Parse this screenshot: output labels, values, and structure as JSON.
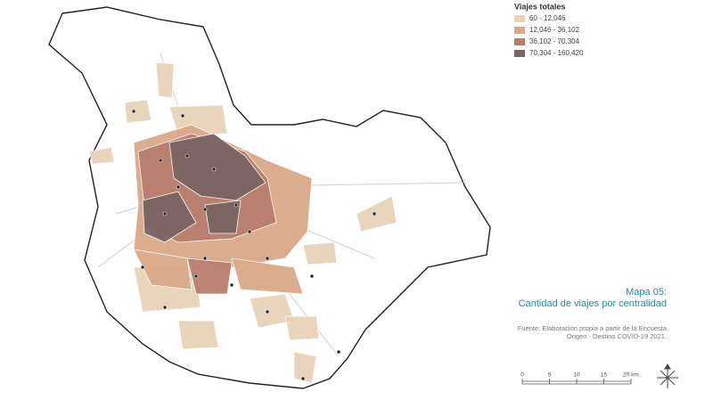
{
  "legend": {
    "title": "Viajes totales",
    "items": [
      {
        "label": "60 - 12,046",
        "color": "#e8d3b8"
      },
      {
        "label": "12,046 - 36,102",
        "color": "#d9a98a"
      },
      {
        "label": "36,102 - 70,304",
        "color": "#b97e6e"
      },
      {
        "label": "70,304 - 160,420",
        "color": "#7a6462"
      }
    ]
  },
  "map_title": [
    "Mapa 05:",
    "Cantidad de viajes por centralidad"
  ],
  "source": [
    "Fuente: Elaboración propia a partir de la Encuesta",
    "Origen - Destino COVID-19 2021."
  ],
  "scale": {
    "labels": [
      "0",
      "5",
      "10",
      "15",
      "20 km"
    ]
  }
}
